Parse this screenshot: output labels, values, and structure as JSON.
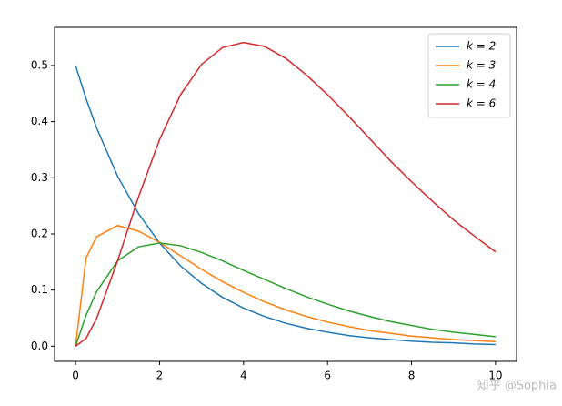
{
  "chart_data": {
    "type": "line",
    "x": [
      0,
      0.25,
      0.5,
      1,
      1.5,
      2,
      2.5,
      3,
      3.5,
      4,
      4.5,
      5,
      5.5,
      6,
      6.5,
      7,
      7.5,
      8,
      8.5,
      9,
      9.5,
      10
    ],
    "series": [
      {
        "name": "k = 2",
        "color": "#1f77b4",
        "values": [
          0.5,
          0.441,
          0.389,
          0.303,
          0.236,
          0.184,
          0.143,
          0.112,
          0.087,
          0.068,
          0.053,
          0.041,
          0.032,
          0.025,
          0.019,
          0.015,
          0.012,
          0.009,
          0.007,
          0.006,
          0.004,
          0.003
        ]
      },
      {
        "name": "k = 3",
        "color": "#ff7f0e",
        "values": [
          0,
          0.157,
          0.195,
          0.215,
          0.205,
          0.185,
          0.161,
          0.137,
          0.115,
          0.096,
          0.079,
          0.065,
          0.053,
          0.043,
          0.035,
          0.028,
          0.023,
          0.018,
          0.015,
          0.012,
          0.01,
          0.008
        ]
      },
      {
        "name": "k = 4",
        "color": "#2ca02c",
        "values": [
          0,
          0.055,
          0.097,
          0.152,
          0.177,
          0.184,
          0.179,
          0.167,
          0.152,
          0.135,
          0.119,
          0.103,
          0.088,
          0.075,
          0.063,
          0.053,
          0.044,
          0.037,
          0.03,
          0.025,
          0.021,
          0.017
        ]
      },
      {
        "name": "k = 6",
        "color": "#d62728",
        "values": [
          0,
          0.014,
          0.049,
          0.152,
          0.266,
          0.368,
          0.448,
          0.502,
          0.532,
          0.541,
          0.534,
          0.513,
          0.483,
          0.448,
          0.41,
          0.37,
          0.33,
          0.293,
          0.258,
          0.225,
          0.196,
          0.168
        ]
      }
    ],
    "xlim": [
      -0.5,
      10.5
    ],
    "xticks": [
      0,
      2,
      4,
      6,
      8,
      10
    ],
    "ylim": [
      -0.027,
      0.568
    ],
    "yticks": [
      {
        "value": 0,
        "label": "0.0"
      },
      0.1,
      0.2,
      0.3,
      0.4,
      0.5
    ],
    "legend": "upper right",
    "watermark": "知乎 @Sophia"
  }
}
